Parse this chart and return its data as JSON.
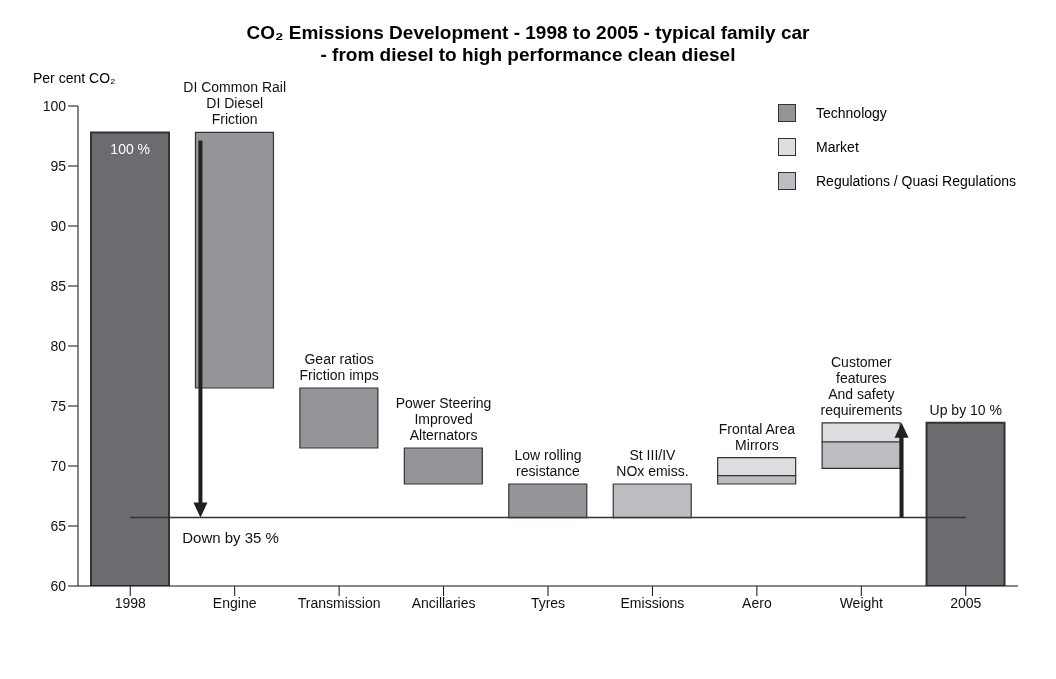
{
  "chart_data": {
    "type": "bar",
    "title": "CO₂ Emissions Development - 1998 to 2005 - typical family car",
    "subtitle": "- from diesel to high performance clean diesel",
    "ylabel": "Per cent CO₂",
    "categories": [
      "1998",
      "Engine",
      "Transmission",
      "Ancillaries",
      "Tyres",
      "Emissions",
      "Aero",
      "Weight",
      "2005"
    ],
    "series": [
      {
        "color": "#6b6c70",
        "values": [
          37.8,
          null,
          null,
          null,
          null,
          null,
          null,
          null,
          13.6
        ],
        "base": [
          60,
          null,
          null,
          null,
          null,
          null,
          null,
          null,
          60
        ]
      },
      {
        "name": "Technology",
        "color": "#939598",
        "values": [
          null,
          21.3,
          5,
          3,
          2.8,
          null,
          null,
          null,
          null
        ],
        "base": [
          null,
          76.5,
          71.5,
          68.5,
          65.7,
          null,
          null,
          null,
          null
        ]
      },
      {
        "name": "Market",
        "color": "#dcdddf",
        "values": [
          null,
          null,
          null,
          null,
          null,
          null,
          1.5,
          1.6,
          null
        ],
        "base": [
          null,
          null,
          null,
          null,
          null,
          null,
          69.2,
          72.0,
          null
        ]
      },
      {
        "name": "Regulations / Quasi Regulations",
        "color": "#bcbdc0",
        "values": [
          null,
          null,
          null,
          null,
          null,
          2.8,
          0.7,
          2.2,
          null
        ],
        "base": [
          null,
          null,
          null,
          null,
          null,
          65.7,
          68.5,
          69.8,
          null
        ]
      }
    ],
    "ylim": [
      60,
      100
    ],
    "yticks": [
      60,
      65,
      70,
      75,
      80,
      85,
      90,
      95,
      100
    ],
    "legend": "top right",
    "ref_lines": [
      {
        "axis": "y",
        "value": 65.7,
        "label": "Down by 35 %"
      }
    ],
    "annotations": [
      "100 %",
      {
        "text": "DI Common Rail\nDI Diesel\nFriction",
        "x": "Engine",
        "y": 97.8
      },
      {
        "text": "Gear ratios\nFriction imps",
        "x": "Transmission",
        "y": 76.5
      },
      {
        "text": "Power Steering\nImproved\nAlternators",
        "x": "Ancillaries",
        "y": 71.5
      },
      {
        "text": "Low rolling\nresistance",
        "x": "Tyres",
        "y": 68.5
      },
      {
        "text": "St III/IV\nNOx emiss.",
        "x": "Emissions",
        "y": 68.5
      },
      {
        "text": "Frontal Area\nMirrors",
        "x": "Aero",
        "y": 70.7
      },
      {
        "text": "Customer\nfeatures\nAnd safety\nrequirements",
        "x": "Weight",
        "y": 73.6
      },
      {
        "text": "Up by 10 %",
        "x": "2005",
        "y": 73.6
      }
    ]
  }
}
